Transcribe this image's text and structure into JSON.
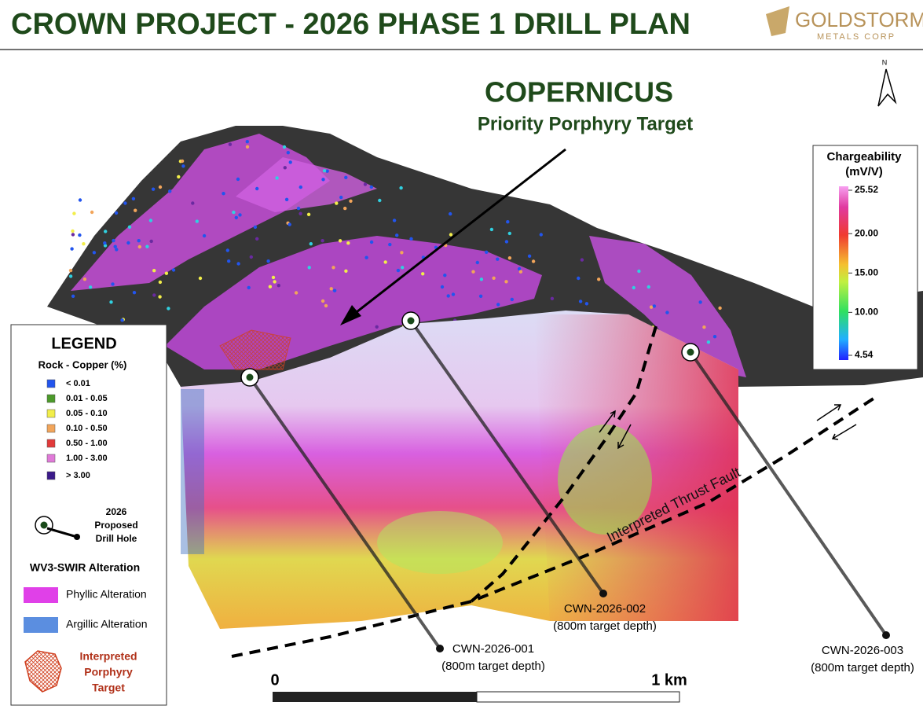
{
  "header": {
    "title": "CROWN PROJECT - 2026 PHASE 1 DRILL PLAN"
  },
  "logo": {
    "name": "GOLDSTORM",
    "subtitle": "METALS CORP"
  },
  "north": "N",
  "callout": {
    "title": "COPERNICUS",
    "subtitle": "Priority Porphyry Target"
  },
  "colorbar": {
    "title": "Chargeability",
    "unit": "(mV/V)",
    "ticks": [
      25.52,
      {
        "value": 20,
        "label": "20.00"
      },
      {
        "value": 15,
        "label": "15.00"
      },
      {
        "value": 10,
        "label": "10.00"
      },
      4.54
    ]
  },
  "legend": {
    "title": "LEGEND",
    "copper_title": "Rock - Copper (%)",
    "copper_items": [
      {
        "label": "< 0.01",
        "color": "#2255ee"
      },
      {
        "label": "0.01 - 0.05",
        "color": "#4c9a2a"
      },
      {
        "label": "0.05 - 0.10",
        "color": "#f2ee4a"
      },
      {
        "label": "0.10 - 0.50",
        "color": "#f2a55a"
      },
      {
        "label": "0.50 - 1.00",
        "color": "#e23a3a"
      },
      {
        "label": "1.00 - 3.00",
        "color": "#e07ad8"
      },
      {
        "label": "> 3.00",
        "color": "#3b1a8a"
      }
    ],
    "drill_hole_lines": [
      "2026",
      "Proposed",
      "Drill Hole"
    ],
    "alteration_title": "WV3-SWIR Alteration",
    "alteration_items": [
      {
        "label": "Phyllic Alteration",
        "color": "#e040e8"
      },
      {
        "label": "Argillic Alteration",
        "color": "#5b8ee0"
      }
    ],
    "target_lines": [
      "Interpreted",
      "Porphyry",
      "Target"
    ]
  },
  "drill_holes": [
    {
      "name": "CWN-2026-001",
      "depth": "(800m target depth)"
    },
    {
      "name": "CWN-2026-002",
      "depth": "(800m target depth)"
    },
    {
      "name": "CWN-2026-003",
      "depth": "(800m target depth)"
    }
  ],
  "fault_label": "Interpreted Thrust Fault",
  "scale_bar": {
    "start": "0",
    "end": "1 km"
  }
}
